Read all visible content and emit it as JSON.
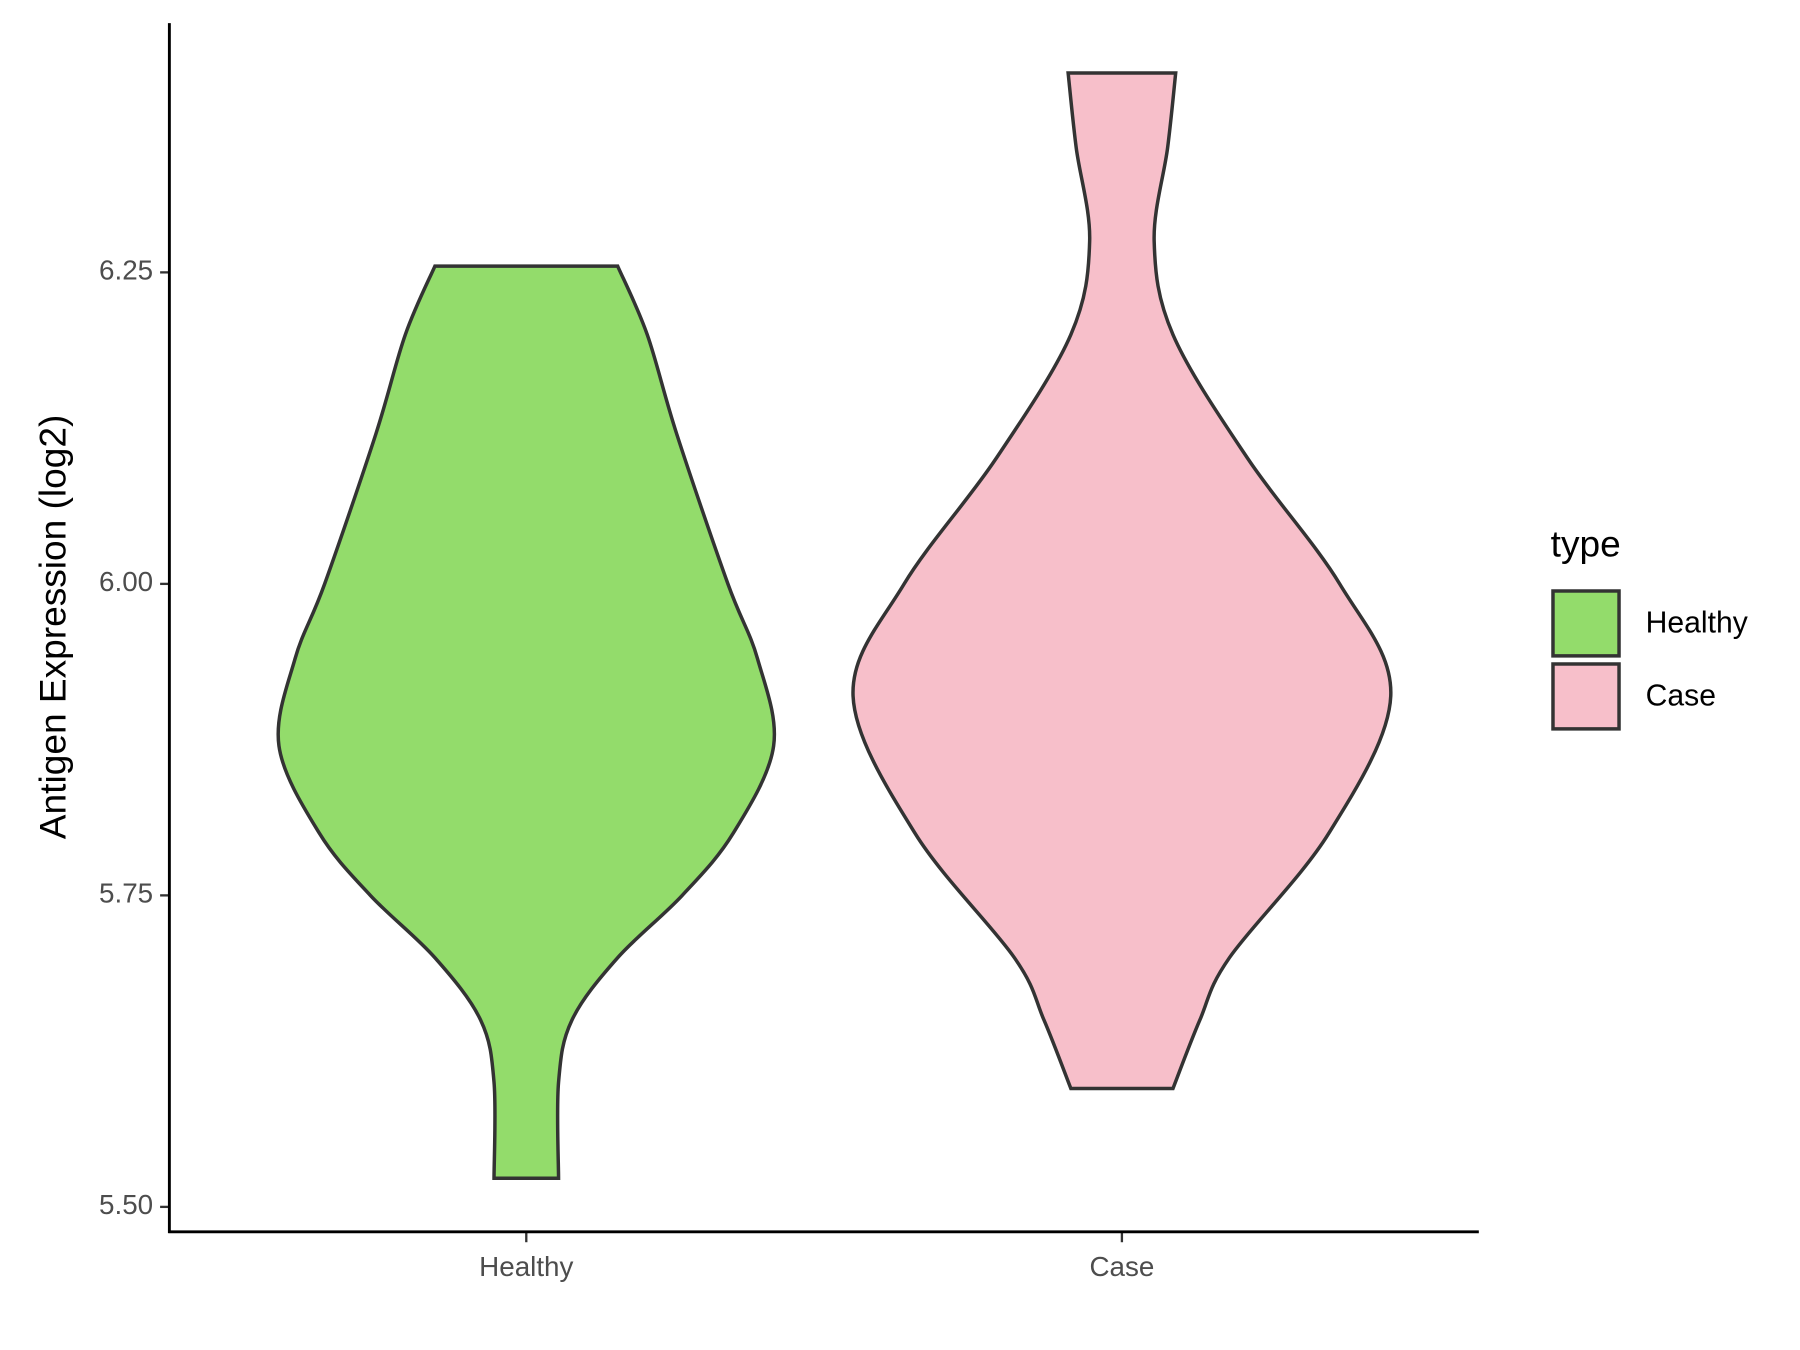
{
  "chart_data": {
    "type": "violin",
    "y_label": "Antigen Expression (log2)",
    "legend_title": "type",
    "categories": [
      "Healthy",
      "Case"
    ],
    "series": [
      {
        "name": "Healthy",
        "color": "#93dc6b",
        "y": [
          6.255,
          6.2,
          6.12,
          6.0,
          5.94,
          5.87,
          5.8,
          5.75,
          5.7,
          5.65,
          5.6,
          5.523
        ],
        "density": [
          0.34,
          0.45,
          0.56,
          0.75,
          0.86,
          0.92,
          0.77,
          0.58,
          0.34,
          0.17,
          0.12,
          0.12
        ]
      },
      {
        "name": "Case",
        "color": "#f7bfca",
        "y": [
          6.41,
          6.35,
          6.275,
          6.2,
          6.1,
          6.0,
          5.91,
          5.8,
          5.7,
          5.65,
          5.595
        ],
        "density": [
          0.2,
          0.17,
          0.12,
          0.19,
          0.47,
          0.81,
          1.0,
          0.77,
          0.4,
          0.29,
          0.19
        ]
      }
    ],
    "ylim": [
      5.48,
      6.45
    ],
    "yticks": [
      {
        "value": 5.5,
        "label": "5.50"
      },
      5.75,
      {
        "value": 6.0,
        "label": "6.00"
      },
      6.25
    ]
  }
}
